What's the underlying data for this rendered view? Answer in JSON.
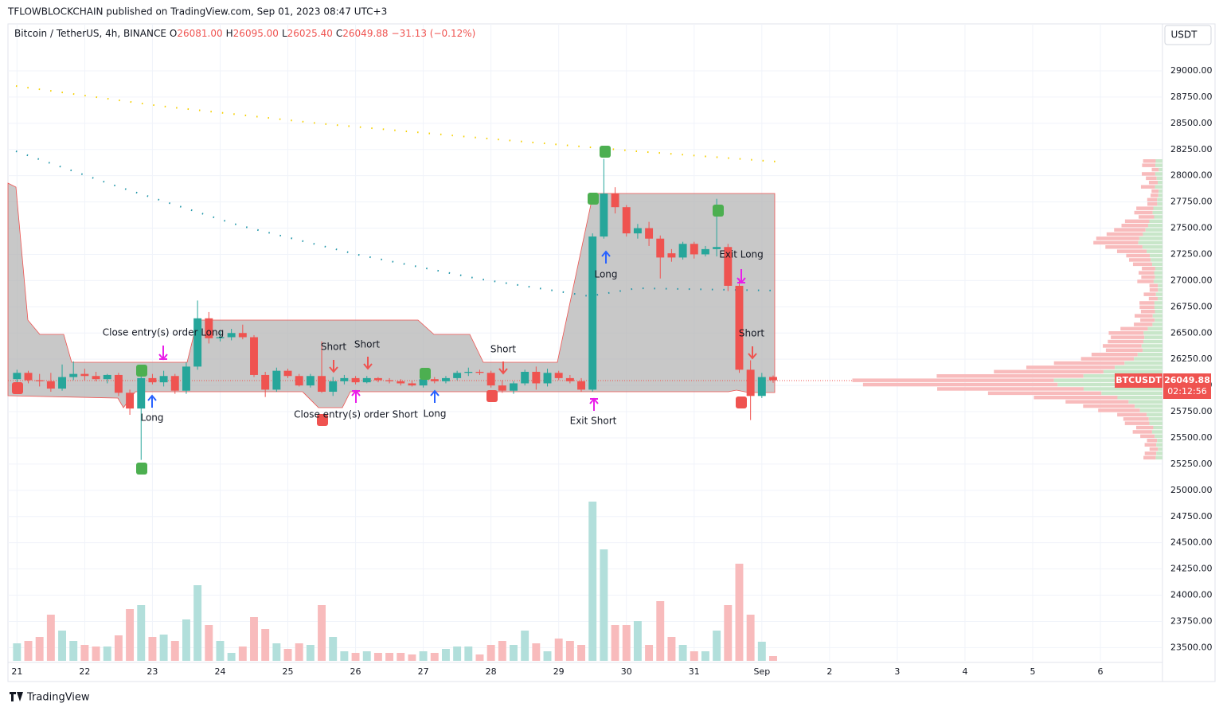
{
  "header": {
    "publisher": "TFLOWBLOCKCHAIN published on TradingView.com, Sep 01, 2023 08:47 UTC+3",
    "symbol": "Bitcoin / TetherUS, 4h, BINANCE",
    "ohlc": [
      {
        "key": "O",
        "text": "26081.00"
      },
      {
        "key": "H",
        "text": "26095.00"
      },
      {
        "key": "L",
        "text": "26025.40"
      },
      {
        "key": "C",
        "text": "26049.88"
      }
    ],
    "change": "−31.13 (−0.12%)",
    "currency": "USDT",
    "brand": "TradingView"
  },
  "price_label": {
    "ticker": "BTCUSDT",
    "price": "26049.88",
    "countdown": "02:12:56"
  },
  "annotations": [
    "Close entry(s) order Long",
    "Long",
    "Short",
    "Short",
    "Close entry(s) order Short",
    "Long",
    "Short",
    "Exit Short",
    "Long",
    "Exit Long",
    "Short"
  ],
  "chart_data": {
    "type": "candlestick",
    "up_color": "#26a69a",
    "down_color": "#ef5350",
    "volume_up_color": "#b2dfdb",
    "volume_down_color": "#f8bbbc",
    "ylim": [
      23374,
      29311
    ],
    "xlim": [
      -0.8,
      101.5
    ],
    "vlim": [
      0,
      210
    ],
    "grid": true,
    "yticks": [
      {
        "value": 23500,
        "label": "23500.00"
      },
      {
        "value": 23750,
        "label": "23750.00"
      },
      {
        "value": 24000,
        "label": "24000.00"
      },
      {
        "value": 24250,
        "label": "24250.00"
      },
      {
        "value": 24500,
        "label": "24500.00"
      },
      {
        "value": 24750,
        "label": "24750.00"
      },
      {
        "value": 25000,
        "label": "25000.00"
      },
      {
        "value": 25250,
        "label": "25250.00"
      },
      {
        "value": 25500,
        "label": "25500.00"
      },
      {
        "value": 25750,
        "label": "25750.00"
      },
      {
        "value": 26000,
        "label": "26000.00"
      },
      {
        "value": 26250,
        "label": "26250.00"
      },
      {
        "value": 26500,
        "label": "26500.00"
      },
      {
        "value": 26750,
        "label": "26750.00"
      },
      {
        "value": 27000,
        "label": "27000.00"
      },
      {
        "value": 27250,
        "label": "27250.00"
      },
      {
        "value": 27500,
        "label": "27500.00"
      },
      {
        "value": 27750,
        "label": "27750.00"
      },
      {
        "value": 28000,
        "label": "28000.00"
      },
      {
        "value": 28250,
        "label": "28250.00"
      },
      {
        "value": 28500,
        "label": "28500.00"
      },
      {
        "value": 28750,
        "label": "28750.00"
      },
      {
        "value": 29000,
        "label": "29000.00"
      }
    ],
    "xticks": [
      {
        "value": 0,
        "label": "21"
      },
      {
        "value": 6,
        "label": "22"
      },
      {
        "value": 12,
        "label": "23"
      },
      {
        "value": 18,
        "label": "24"
      },
      {
        "value": 24,
        "label": "25"
      },
      {
        "value": 30,
        "label": "26"
      },
      {
        "value": 36,
        "label": "27"
      },
      {
        "value": 42,
        "label": "28"
      },
      {
        "value": 48,
        "label": "29"
      },
      {
        "value": 54,
        "label": "30"
      },
      {
        "value": 60,
        "label": "31"
      },
      {
        "value": 66,
        "label": "Sep"
      },
      {
        "value": 72,
        "label": "2"
      },
      {
        "value": 78,
        "label": "3"
      },
      {
        "value": 84,
        "label": "4"
      },
      {
        "value": 90,
        "label": "5"
      },
      {
        "value": 96,
        "label": "6"
      }
    ],
    "open": [
      26060,
      26120,
      26050,
      26040,
      25970,
      26080,
      26110,
      26090,
      26060,
      26100,
      25930,
      25780,
      26070,
      26030,
      26090,
      25950,
      26180,
      26640,
      26450,
      26460,
      26500,
      26460,
      26100,
      25960,
      26140,
      26090,
      26000,
      26090,
      25940,
      26040,
      26070,
      26030,
      26070,
      26050,
      26040,
      26020,
      26000,
      26060,
      26040,
      26070,
      26120,
      26130,
      26120,
      26000,
      25950,
      26020,
      26130,
      26020,
      26120,
      26070,
      26040,
      25960,
      27420,
      27830,
      27700,
      27450,
      27500,
      27400,
      27260,
      27220,
      27350,
      27250,
      27300,
      27320,
      26950,
      26150,
      25900,
      26081
    ],
    "high": [
      26150,
      26140,
      26110,
      26120,
      26200,
      26230,
      26160,
      26130,
      26110,
      26120,
      25960,
      26120,
      26110,
      26140,
      26110,
      26220,
      26810,
      26700,
      26520,
      26540,
      26580,
      26480,
      26130,
      26170,
      26160,
      26110,
      26110,
      26420,
      26080,
      26100,
      26090,
      26090,
      26080,
      26070,
      26060,
      26050,
      26070,
      26080,
      26090,
      26140,
      26170,
      26150,
      26140,
      26050,
      26040,
      26150,
      26180,
      26160,
      26140,
      26100,
      26070,
      27450,
      28160,
      27890,
      27720,
      27540,
      27560,
      27430,
      27300,
      27370,
      27370,
      27330,
      27780,
      27350,
      27020,
      26240,
      26120,
      26095
    ],
    "low": [
      26000,
      26020,
      25990,
      25940,
      25950,
      26050,
      26050,
      26040,
      26020,
      25900,
      25720,
      25290,
      26010,
      25990,
      25920,
      25920,
      26150,
      26400,
      26420,
      26430,
      26440,
      26080,
      25890,
      25940,
      26070,
      25990,
      25980,
      25930,
      25900,
      26010,
      26010,
      26020,
      26030,
      26020,
      26000,
      25990,
      25980,
      26020,
      26020,
      26050,
      26090,
      26100,
      25980,
      25930,
      25920,
      26000,
      25960,
      25990,
      26050,
      26020,
      25940,
      25940,
      27400,
      27640,
      27420,
      27400,
      27330,
      27020,
      27180,
      27200,
      27210,
      27230,
      27230,
      26900,
      26120,
      25670,
      25880,
      26025.4
    ],
    "close": [
      26120,
      26050,
      26040,
      25970,
      26080,
      26110,
      26090,
      26060,
      26100,
      25930,
      25780,
      26070,
      26030,
      26090,
      25950,
      26180,
      26640,
      26450,
      26460,
      26500,
      26460,
      26100,
      25960,
      26140,
      26090,
      26000,
      26090,
      25940,
      26040,
      26070,
      26030,
      26070,
      26050,
      26040,
      26020,
      26000,
      26060,
      26040,
      26070,
      26120,
      26130,
      26120,
      26000,
      25950,
      26020,
      26130,
      26020,
      26120,
      26070,
      26040,
      25960,
      27420,
      27830,
      27700,
      27450,
      27500,
      27400,
      27220,
      27220,
      27350,
      27250,
      27300,
      27320,
      26950,
      26150,
      25900,
      26080,
      26049.88
    ],
    "volume": [
      22,
      25,
      30,
      58,
      38,
      25,
      20,
      18,
      18,
      32,
      65,
      70,
      30,
      33,
      25,
      52,
      95,
      45,
      25,
      10,
      18,
      55,
      40,
      22,
      15,
      22,
      20,
      70,
      30,
      12,
      10,
      12,
      10,
      10,
      10,
      8,
      12,
      10,
      15,
      18,
      18,
      8,
      20,
      25,
      20,
      38,
      22,
      12,
      28,
      25,
      20,
      200,
      140,
      45,
      45,
      50,
      20,
      75,
      30,
      20,
      12,
      12,
      38,
      70,
      122,
      58,
      24,
      6
    ]
  }
}
